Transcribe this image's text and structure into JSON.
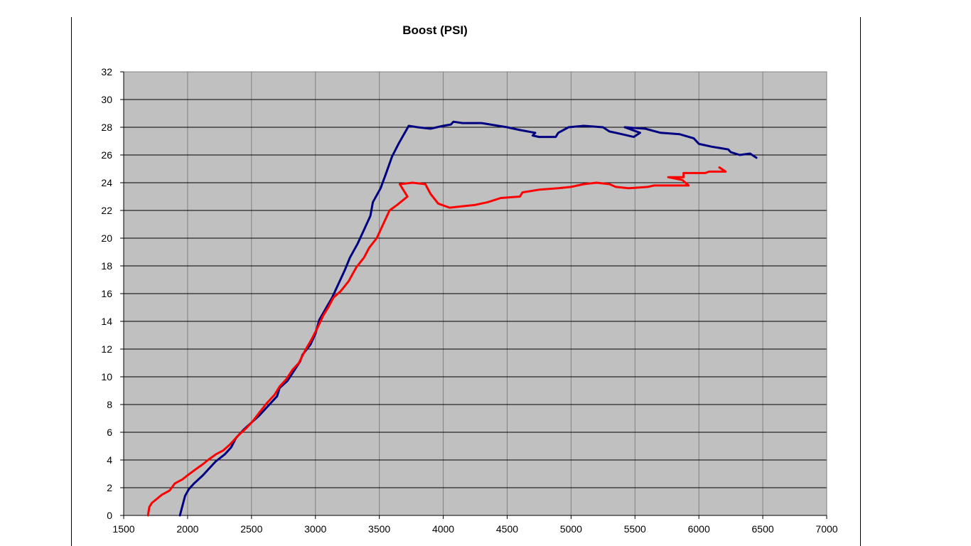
{
  "chart_data": {
    "type": "line",
    "title": "Boost (PSI)",
    "xlabel": "",
    "ylabel": "",
    "xlim": [
      1500,
      7000
    ],
    "ylim": [
      0,
      32
    ],
    "xticks": [
      1500,
      2000,
      2500,
      3000,
      3500,
      4000,
      4500,
      5000,
      5500,
      6000,
      6500,
      7000
    ],
    "yticks": [
      0,
      2,
      4,
      6,
      8,
      10,
      12,
      14,
      16,
      18,
      20,
      22,
      24,
      26,
      28,
      30,
      32
    ],
    "grid": true,
    "legend": "none",
    "plot_background": "#c0c0c0",
    "series": [
      {
        "color": "#000080",
        "points": [
          [
            1940,
            0
          ],
          [
            1980,
            1.4
          ],
          [
            2010,
            1.9
          ],
          [
            2050,
            2.3
          ],
          [
            2120,
            2.9
          ],
          [
            2160,
            3.3
          ],
          [
            2220,
            3.9
          ],
          [
            2290,
            4.4
          ],
          [
            2340,
            4.9
          ],
          [
            2380,
            5.6
          ],
          [
            2440,
            6.2
          ],
          [
            2500,
            6.7
          ],
          [
            2560,
            7.2
          ],
          [
            2620,
            7.8
          ],
          [
            2700,
            8.6
          ],
          [
            2720,
            9.2
          ],
          [
            2780,
            9.7
          ],
          [
            2830,
            10.4
          ],
          [
            2880,
            11.1
          ],
          [
            2900,
            11.6
          ],
          [
            2960,
            12.3
          ],
          [
            3000,
            13.1
          ],
          [
            3030,
            14.1
          ],
          [
            3080,
            14.9
          ],
          [
            3130,
            15.7
          ],
          [
            3180,
            16.7
          ],
          [
            3230,
            17.7
          ],
          [
            3270,
            18.6
          ],
          [
            3330,
            19.6
          ],
          [
            3380,
            20.6
          ],
          [
            3430,
            21.6
          ],
          [
            3450,
            22.6
          ],
          [
            3510,
            23.6
          ],
          [
            3550,
            24.6
          ],
          [
            3600,
            25.9
          ],
          [
            3650,
            26.8
          ],
          [
            3730,
            28.1
          ],
          [
            3800,
            28.0
          ],
          [
            3900,
            27.9
          ],
          [
            4000,
            28.1
          ],
          [
            4060,
            28.2
          ],
          [
            4080,
            28.4
          ],
          [
            4150,
            28.3
          ],
          [
            4300,
            28.3
          ],
          [
            4500,
            28.0
          ],
          [
            4600,
            27.8
          ],
          [
            4720,
            27.6
          ],
          [
            4700,
            27.4
          ],
          [
            4750,
            27.3
          ],
          [
            4880,
            27.3
          ],
          [
            4900,
            27.6
          ],
          [
            4980,
            28.0
          ],
          [
            5100,
            28.1
          ],
          [
            5250,
            28.0
          ],
          [
            5300,
            27.7
          ],
          [
            5400,
            27.5
          ],
          [
            5490,
            27.3
          ],
          [
            5540,
            27.6
          ],
          [
            5420,
            28.0
          ],
          [
            5580,
            27.9
          ],
          [
            5700,
            27.6
          ],
          [
            5850,
            27.5
          ],
          [
            5960,
            27.2
          ],
          [
            6000,
            26.8
          ],
          [
            6100,
            26.6
          ],
          [
            6230,
            26.4
          ],
          [
            6250,
            26.2
          ],
          [
            6320,
            26.0
          ],
          [
            6400,
            26.1
          ],
          [
            6450,
            25.8
          ]
        ]
      },
      {
        "color": "#ff0000",
        "points": [
          [
            1690,
            0
          ],
          [
            1700,
            0.6
          ],
          [
            1720,
            0.9
          ],
          [
            1760,
            1.2
          ],
          [
            1800,
            1.5
          ],
          [
            1860,
            1.8
          ],
          [
            1900,
            2.3
          ],
          [
            1960,
            2.6
          ],
          [
            2000,
            2.9
          ],
          [
            2060,
            3.3
          ],
          [
            2120,
            3.7
          ],
          [
            2160,
            4.0
          ],
          [
            2220,
            4.4
          ],
          [
            2280,
            4.7
          ],
          [
            2330,
            5.1
          ],
          [
            2400,
            5.8
          ],
          [
            2460,
            6.3
          ],
          [
            2510,
            6.8
          ],
          [
            2560,
            7.4
          ],
          [
            2620,
            8.1
          ],
          [
            2680,
            8.7
          ],
          [
            2720,
            9.3
          ],
          [
            2770,
            9.8
          ],
          [
            2820,
            10.5
          ],
          [
            2870,
            11.0
          ],
          [
            2920,
            11.9
          ],
          [
            2970,
            12.7
          ],
          [
            3020,
            13.6
          ],
          [
            3060,
            14.4
          ],
          [
            3100,
            15.0
          ],
          [
            3140,
            15.7
          ],
          [
            3200,
            16.2
          ],
          [
            3260,
            16.9
          ],
          [
            3320,
            17.9
          ],
          [
            3380,
            18.6
          ],
          [
            3420,
            19.3
          ],
          [
            3480,
            20.0
          ],
          [
            3530,
            21.0
          ],
          [
            3580,
            22.0
          ],
          [
            3640,
            22.4
          ],
          [
            3720,
            23.0
          ],
          [
            3660,
            23.9
          ],
          [
            3760,
            24.0
          ],
          [
            3860,
            23.9
          ],
          [
            3900,
            23.2
          ],
          [
            3960,
            22.5
          ],
          [
            4050,
            22.2
          ],
          [
            4150,
            22.3
          ],
          [
            4250,
            22.4
          ],
          [
            4350,
            22.6
          ],
          [
            4450,
            22.9
          ],
          [
            4600,
            23.0
          ],
          [
            4620,
            23.3
          ],
          [
            4750,
            23.5
          ],
          [
            4900,
            23.6
          ],
          [
            5000,
            23.7
          ],
          [
            5100,
            23.9
          ],
          [
            5200,
            24.0
          ],
          [
            5300,
            23.9
          ],
          [
            5350,
            23.7
          ],
          [
            5450,
            23.6
          ],
          [
            5600,
            23.7
          ],
          [
            5650,
            23.8
          ],
          [
            5750,
            23.8
          ],
          [
            5920,
            23.8
          ],
          [
            5870,
            24.2
          ],
          [
            5760,
            24.4
          ],
          [
            5880,
            24.4
          ],
          [
            5880,
            24.7
          ],
          [
            6050,
            24.7
          ],
          [
            6080,
            24.8
          ],
          [
            6210,
            24.8
          ],
          [
            6160,
            25.1
          ]
        ]
      }
    ]
  }
}
